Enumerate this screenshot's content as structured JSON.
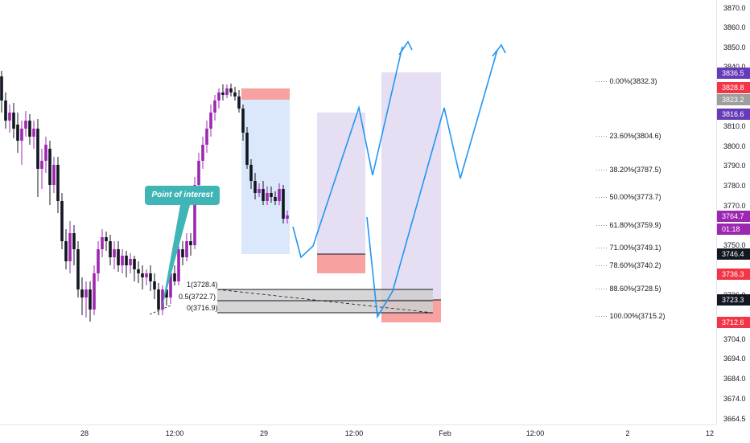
{
  "price_axis": {
    "ticks": [
      "3870.0",
      "3860.0",
      "3850.0",
      "3840.0",
      "3810.0",
      "3800.0",
      "3790.0",
      "3780.0",
      "3770.0",
      "3750.0",
      "3726.0",
      "3704.0",
      "3694.0",
      "3684.0",
      "3674.0",
      "3664.5"
    ],
    "tags": [
      {
        "label": "3836.5",
        "color": "#673ab7"
      },
      {
        "label": "3828.8",
        "color": "#f23645"
      },
      {
        "label": "3823.2",
        "color": "#9e9e9e"
      },
      {
        "label": "3816.6",
        "color": "#673ab7"
      },
      {
        "label": "3764.7",
        "color": "#9c27b0"
      },
      {
        "label": "01:18",
        "color": "#9c27b0"
      },
      {
        "label": "3746.4",
        "color": "#131722"
      },
      {
        "label": "3736.3",
        "color": "#f23645"
      },
      {
        "label": "3723.3",
        "color": "#131722"
      },
      {
        "label": "3712.6",
        "color": "#f23645"
      }
    ]
  },
  "time_axis": {
    "ticks": [
      "28",
      "12:00",
      "29",
      "12:00",
      "Feb",
      "12:00",
      "2",
      "12"
    ]
  },
  "fib_levels": [
    {
      "label": "0.00%(3832.3)"
    },
    {
      "label": "23.60%(3804.6)"
    },
    {
      "label": "38.20%(3787.5)"
    },
    {
      "label": "50.00%(3773.7)"
    },
    {
      "label": "61.80%(3759.9)"
    },
    {
      "label": "71.00%(3749.1)"
    },
    {
      "label": "78.60%(3740.2)"
    },
    {
      "label": "88.60%(3728.5)"
    },
    {
      "label": "100.00%(3715.2)"
    }
  ],
  "zone_labels": [
    {
      "label": "1(3728.4)"
    },
    {
      "label": "0.5(3722.7)"
    },
    {
      "label": "0(3716.9)"
    }
  ],
  "annotation": {
    "label": "Point of interest"
  },
  "colors": {
    "bull": "#9c27b0",
    "bear": "#131722",
    "path": "#2196f3",
    "callout": "#3fb5b5",
    "stop_zone": "#f7a1a1",
    "target_zone_blue": "#dbe7fa",
    "target_zone_purple": "#e6dff3",
    "demand_zone": "#cfcfcf"
  }
}
